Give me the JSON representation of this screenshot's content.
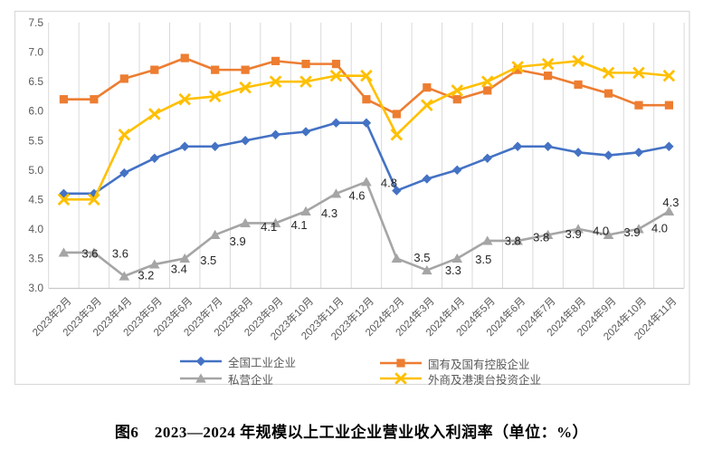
{
  "caption": "图6　2023—2024 年规模以上工业企业营业收入利润率（单位：%）",
  "palette": {
    "background": "#FFFFFF",
    "frame": "#D9D9D9",
    "grid": "#D9D9D9",
    "axis": "#C9C9C9",
    "tick_text": "#595959",
    "data_label": "#262626",
    "legend_text": "#595959",
    "caption_text": "#000000"
  },
  "chart_data": {
    "type": "line",
    "title": "",
    "xlabel": "",
    "ylabel": "",
    "ylim": [
      3.0,
      7.5
    ],
    "ytick_step": 0.5,
    "ytick_labels": [
      "3.0",
      "3.5",
      "4.0",
      "4.5",
      "5.0",
      "5.5",
      "6.0",
      "6.5",
      "7.0",
      "7.5"
    ],
    "grid": "vertical-only",
    "legend_position": "bottom",
    "categories": [
      "2023年2月",
      "2023年3月",
      "2023年4月",
      "2023年5月",
      "2023年6月",
      "2023年7月",
      "2023年8月",
      "2023年9月",
      "2023年10月",
      "2023年11月",
      "2023年12月",
      "2024年2月",
      "2024年3月",
      "2024年4月",
      "2024年5月",
      "2024年6月",
      "2024年7月",
      "2024年8月",
      "2024年9月",
      "2024年10月",
      "2024年11月"
    ],
    "series": [
      {
        "name": "全国工业企业",
        "color": "#4472C4",
        "marker": "diamond",
        "values": [
          4.6,
          4.6,
          4.95,
          5.2,
          5.4,
          5.4,
          5.5,
          5.6,
          5.65,
          5.8,
          5.8,
          4.65,
          4.85,
          5.0,
          5.2,
          5.4,
          5.4,
          5.3,
          5.25,
          5.3,
          5.4
        ]
      },
      {
        "name": "国有及国有控股企业",
        "color": "#ED7D31",
        "marker": "square",
        "values": [
          6.2,
          6.2,
          6.55,
          6.7,
          6.9,
          6.7,
          6.7,
          6.85,
          6.8,
          6.8,
          6.2,
          5.95,
          6.4,
          6.2,
          6.35,
          6.7,
          6.6,
          6.45,
          6.3,
          6.1,
          6.1
        ]
      },
      {
        "name": "私营企业",
        "color": "#A5A5A5",
        "marker": "triangle",
        "values": [
          3.6,
          3.6,
          3.2,
          3.4,
          3.5,
          3.9,
          4.1,
          4.1,
          4.3,
          4.6,
          4.8,
          3.5,
          3.3,
          3.5,
          3.8,
          3.8,
          3.9,
          4.0,
          3.9,
          4.0,
          4.3
        ],
        "data_labels": [
          "3.6",
          "3.6",
          "3.2",
          "3.4",
          "3.5",
          "3.9",
          "4.1",
          "4.1",
          "4.3",
          "4.6",
          "4.8",
          "3.5",
          "3.3",
          "3.5",
          "3.8",
          "3.8",
          "3.9",
          "4.0",
          "3.9",
          "4.0",
          "4.3"
        ]
      },
      {
        "name": "外商及港澳台投资企业",
        "color": "#FFC000",
        "marker": "x",
        "values": [
          4.5,
          4.5,
          5.6,
          5.95,
          6.2,
          6.25,
          6.4,
          6.5,
          6.5,
          6.6,
          6.6,
          5.6,
          6.1,
          6.35,
          6.5,
          6.75,
          6.8,
          6.85,
          6.65,
          6.65,
          6.6
        ]
      }
    ]
  }
}
